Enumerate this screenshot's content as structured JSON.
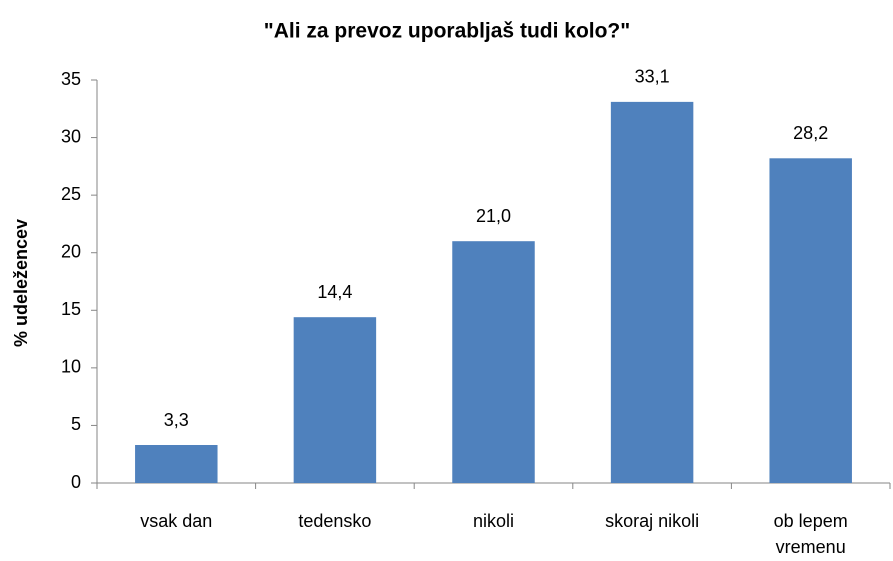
{
  "chart_data": {
    "type": "bar",
    "title": "\"Ali za prevoz uporabljaš tudi kolo?\"",
    "y_label": "% udeležencev",
    "categories": [
      "vsak dan",
      "tedensko",
      "nikoli",
      "skoraj nikoli",
      "ob lepem vremenu"
    ],
    "values": [
      3.3,
      14.4,
      21.0,
      33.1,
      28.2
    ],
    "value_labels": [
      "3,3",
      "14,4",
      "21,0",
      "33,1",
      "28,2"
    ],
    "color": "#4f81bd",
    "ylim": [
      0,
      35
    ],
    "yticks": [
      0,
      5,
      10,
      15,
      20,
      25,
      30,
      35
    ],
    "grid": false
  }
}
